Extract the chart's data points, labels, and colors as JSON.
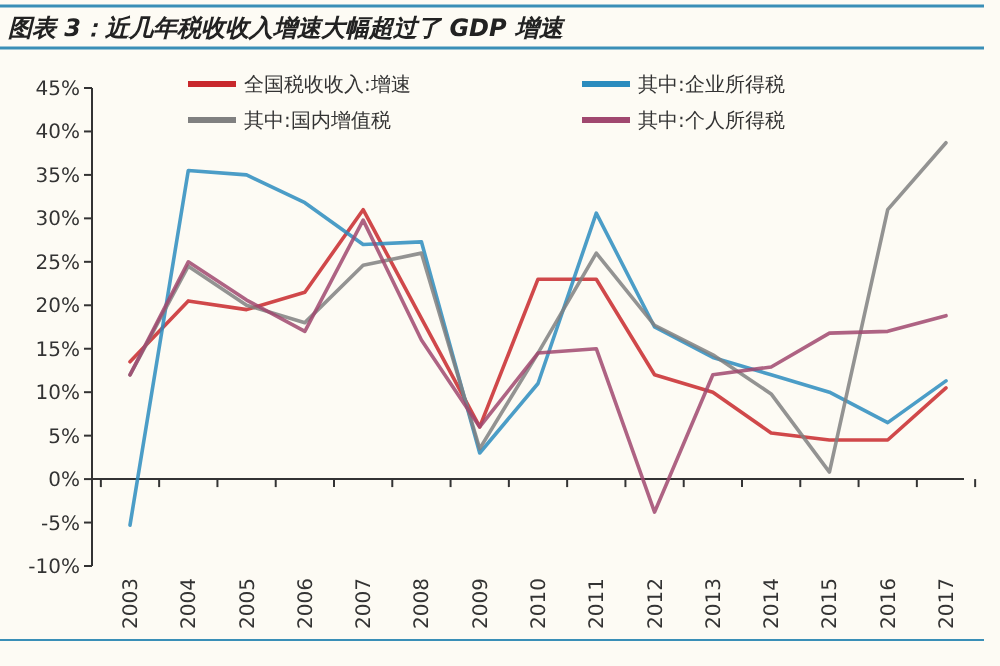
{
  "chart_data": {
    "type": "line",
    "title": "图表 3：近几年税收收入增速大幅超过了 GDP 增速",
    "categories": [
      "2003",
      "2004",
      "2005",
      "2006",
      "2007",
      "2008",
      "2009",
      "2010",
      "2011",
      "2012",
      "2013",
      "2014",
      "2015",
      "2016",
      "2017"
    ],
    "series": [
      {
        "name": "全国税收收入:增速",
        "color": "#c8282c",
        "values": [
          13.5,
          20.5,
          19.5,
          21.5,
          31,
          18.5,
          6,
          23,
          23,
          12,
          10,
          5.3,
          4.5,
          4.5,
          10.5
        ]
      },
      {
        "name": "其中:企业所得税",
        "color": "#2b8cbe",
        "values": [
          -5.3,
          35.5,
          35,
          31.8,
          27,
          27.3,
          3,
          11,
          30.6,
          17.5,
          14,
          12,
          10,
          6.5,
          11.3
        ]
      },
      {
        "name": "其中:国内增值税",
        "color": "#808080",
        "values": [
          12,
          24.5,
          20,
          18,
          24.6,
          26,
          3.5,
          14.5,
          26,
          17.7,
          14.3,
          9.8,
          0.8,
          31,
          38.7
        ]
      },
      {
        "name": "其中:个人所得税",
        "color": "#a0486f",
        "values": [
          12,
          25,
          20.6,
          17,
          29.8,
          16,
          6,
          14.5,
          15,
          -3.8,
          12,
          12.9,
          16.8,
          17,
          18.8
        ]
      }
    ],
    "ylim": [
      -10,
      45
    ],
    "yticks": [
      {
        "value": -10,
        "label": "-10%"
      },
      {
        "value": -5,
        "label": "-5%"
      },
      {
        "value": 0,
        "label": "0%"
      },
      {
        "value": 5,
        "label": "5%"
      },
      {
        "value": 10,
        "label": "10%"
      },
      {
        "value": 15,
        "label": "15%"
      },
      {
        "value": 20,
        "label": "20%"
      },
      {
        "value": 25,
        "label": "25%"
      },
      {
        "value": 30,
        "label": "30%"
      },
      {
        "value": 35,
        "label": "35%"
      },
      {
        "value": 40,
        "label": "40%"
      },
      {
        "value": 45,
        "label": "45%"
      }
    ],
    "legend": "top",
    "marker": "none",
    "line_style": "solid"
  }
}
